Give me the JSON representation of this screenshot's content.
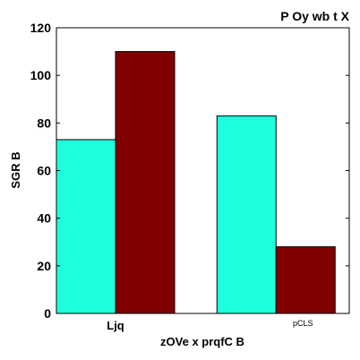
{
  "chart_data": {
    "type": "bar",
    "title": "P Oy  wb t X",
    "xlabel": "zOVe x prqfC B",
    "ylabel": "SGR B",
    "categories": [
      "Ljq",
      "pCLS"
    ],
    "series": [
      {
        "values": [
          73,
          83
        ],
        "color": "#1effdd"
      },
      {
        "values": [
          110,
          28
        ],
        "color": "#800000"
      }
    ],
    "ylim": [
      0,
      120
    ],
    "yticks": [
      0,
      20,
      40,
      60,
      80,
      100,
      120
    ],
    "grid": false,
    "legend": "none"
  }
}
